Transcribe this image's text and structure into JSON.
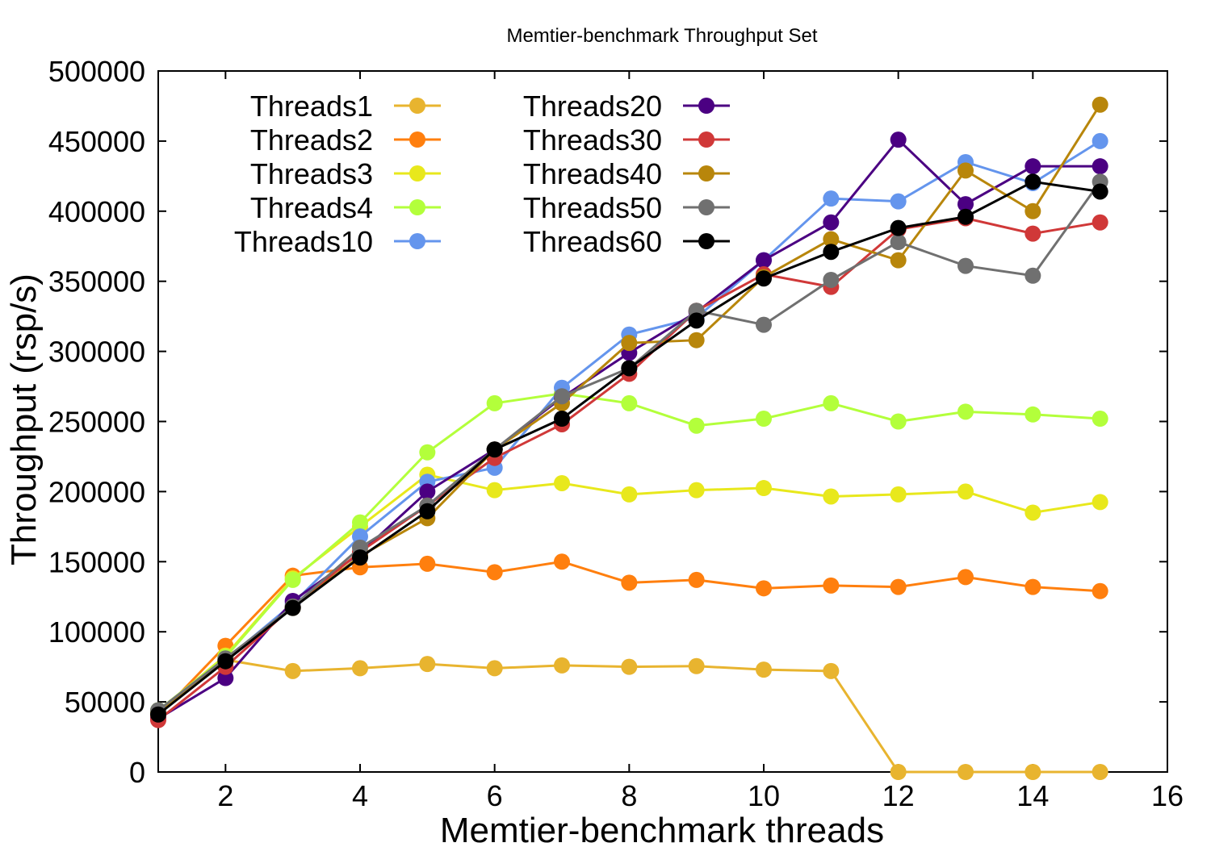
{
  "chart_data": {
    "type": "line",
    "title": "Memtier-benchmark Throughput Set",
    "xlabel": "Memtier-benchmark threads",
    "ylabel": "Throughput (rsp/s)",
    "xlim": [
      1,
      16
    ],
    "ylim": [
      0,
      500000
    ],
    "xticks": [
      2,
      4,
      6,
      8,
      10,
      12,
      14,
      16
    ],
    "yticks": [
      0,
      50000,
      100000,
      150000,
      200000,
      250000,
      300000,
      350000,
      400000,
      450000,
      500000
    ],
    "grid": false,
    "legend_position": "top-left",
    "x": [
      1,
      2,
      3,
      4,
      5,
      6,
      7,
      8,
      9,
      10,
      11,
      12,
      13,
      14,
      15
    ],
    "series": [
      {
        "name": "Threads1",
        "color": "#e8b42f",
        "values": [
          42000,
          80000,
          72000,
          74000,
          77000,
          74000,
          76000,
          75000,
          75500,
          73000,
          72000,
          0,
          0,
          0,
          0
        ]
      },
      {
        "name": "Threads2",
        "color": "#ff7f0e",
        "values": [
          40000,
          90000,
          140000,
          146000,
          148500,
          142500,
          150000,
          135000,
          137000,
          131000,
          133000,
          132000,
          139000,
          132000,
          129000
        ]
      },
      {
        "name": "Threads3",
        "color": "#e8e81c",
        "values": [
          43000,
          83000,
          138000,
          175000,
          212000,
          201000,
          206000,
          198000,
          201000,
          202500,
          196500,
          198000,
          200000,
          185000,
          192500
        ]
      },
      {
        "name": "Threads4",
        "color": "#b3ff3b",
        "values": [
          44000,
          82000,
          137000,
          178000,
          228000,
          263000,
          270000,
          263000,
          247000,
          252000,
          263000,
          250000,
          257000,
          255000,
          252000
        ]
      },
      {
        "name": "Threads10",
        "color": "#6495ed",
        "values": [
          42000,
          80000,
          120000,
          168000,
          207000,
          217000,
          274000,
          312000,
          324000,
          365000,
          409000,
          407000,
          435000,
          420000,
          450000
        ]
      },
      {
        "name": "Threads20",
        "color": "#4b0082",
        "values": [
          38000,
          67000,
          122000,
          156000,
          200000,
          230000,
          267000,
          299000,
          328000,
          365000,
          392000,
          451000,
          405000,
          432000,
          432000
        ]
      },
      {
        "name": "Threads30",
        "color": "#d03838",
        "values": [
          37000,
          75000,
          118000,
          157000,
          190000,
          224000,
          248000,
          284000,
          329000,
          355000,
          346000,
          387000,
          395000,
          384000,
          392000
        ]
      },
      {
        "name": "Threads40",
        "color": "#b8860b",
        "values": [
          42000,
          80000,
          117000,
          154000,
          181000,
          230000,
          263000,
          306000,
          308000,
          353000,
          380000,
          365000,
          429000,
          400000,
          476000
        ]
      },
      {
        "name": "Threads50",
        "color": "#707070",
        "values": [
          44000,
          81000,
          118000,
          160000,
          190000,
          230000,
          268000,
          288000,
          329000,
          319000,
          351000,
          378000,
          361000,
          354000,
          421000
        ]
      },
      {
        "name": "Threads60",
        "color": "#000000",
        "values": [
          41000,
          79000,
          117000,
          153000,
          186000,
          230000,
          252000,
          288000,
          322000,
          352000,
          371000,
          388000,
          396000,
          421000,
          414000
        ]
      }
    ]
  }
}
